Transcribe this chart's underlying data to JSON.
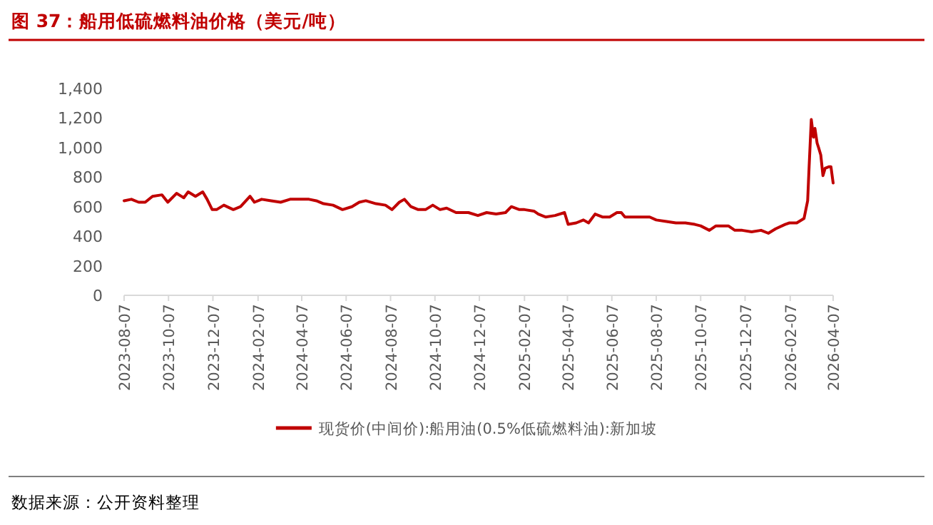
{
  "chart_data": {
    "type": "line",
    "title": "图 37：船用低硫燃料油价格（美元/吨）",
    "annotations": [
      "数据来源：公开资料整理"
    ],
    "x": [
      "2023-08-07",
      "2023-08-17",
      "2023-08-27",
      "2023-09-05",
      "2023-09-15",
      "2023-09-28",
      "2023-10-06",
      "2023-10-18",
      "2023-10-28",
      "2023-11-03",
      "2023-11-13",
      "2023-11-23",
      "2023-11-29",
      "2023-12-06",
      "2023-12-12",
      "2023-12-22",
      "2024-01-04",
      "2024-01-14",
      "2024-01-27",
      "2024-02-02",
      "2024-02-12",
      "2024-02-25",
      "2024-03-09",
      "2024-03-22",
      "2024-04-04",
      "2024-04-17",
      "2024-04-27",
      "2024-05-07",
      "2024-05-20",
      "2024-06-02",
      "2024-06-15",
      "2024-06-25",
      "2024-07-04",
      "2024-07-18",
      "2024-07-31",
      "2024-08-09",
      "2024-08-19",
      "2024-08-26",
      "2024-09-04",
      "2024-09-14",
      "2024-09-24",
      "2024-10-04",
      "2024-10-14",
      "2024-10-23",
      "2024-11-05",
      "2024-11-22",
      "2024-12-05",
      "2024-12-17",
      "2024-12-30",
      "2025-01-12",
      "2025-01-20",
      "2025-01-31",
      "2025-02-07",
      "2025-02-20",
      "2025-02-26",
      "2025-03-08",
      "2025-03-21",
      "2025-04-03",
      "2025-04-08",
      "2025-04-19",
      "2025-04-29",
      "2025-05-06",
      "2025-05-15",
      "2025-05-25",
      "2025-06-04",
      "2025-06-14",
      "2025-06-20",
      "2025-06-25",
      "2025-07-13",
      "2025-07-29",
      "2025-08-07",
      "2025-08-21",
      "2025-09-03",
      "2025-09-16",
      "2025-09-29",
      "2025-10-07",
      "2025-10-19",
      "2025-10-28",
      "2025-11-14",
      "2025-11-23",
      "2025-12-03",
      "2025-12-16",
      "2025-12-29",
      "2026-01-08",
      "2026-01-18",
      "2026-01-31",
      "2026-02-06",
      "2026-02-16",
      "2026-02-26",
      "2026-03-03",
      "2026-03-05",
      "2026-03-08",
      "2026-03-11",
      "2026-03-13",
      "2026-03-16",
      "2026-03-18",
      "2026-03-21",
      "2026-03-24",
      "2026-03-27",
      "2026-04-01",
      "2026-04-04",
      "2026-04-07"
    ],
    "series": [
      {
        "name": "现货价(中间价):船用油(0.5%低硫燃料油):新加坡",
        "color": "#c00000",
        "values": [
          640,
          650,
          630,
          630,
          670,
          680,
          630,
          690,
          660,
          700,
          670,
          700,
          650,
          580,
          580,
          610,
          580,
          600,
          670,
          630,
          650,
          640,
          630,
          650,
          650,
          650,
          640,
          620,
          610,
          580,
          600,
          630,
          640,
          620,
          610,
          580,
          630,
          650,
          600,
          580,
          580,
          610,
          580,
          590,
          560,
          560,
          540,
          560,
          550,
          560,
          600,
          580,
          580,
          570,
          550,
          530,
          540,
          560,
          480,
          490,
          510,
          490,
          550,
          530,
          530,
          560,
          560,
          530,
          530,
          530,
          510,
          500,
          490,
          490,
          480,
          470,
          440,
          470,
          470,
          440,
          440,
          430,
          440,
          420,
          450,
          480,
          490,
          490,
          520,
          640,
          870,
          1190,
          1070,
          1130,
          1030,
          1000,
          950,
          810,
          860,
          870,
          870,
          760
        ]
      }
    ],
    "xlim": [
      "2023-08-07",
      "2026-04-07"
    ],
    "xticks": [
      "2023-08-07",
      "2023-10-07",
      "2023-12-07",
      "2024-02-07",
      "2024-04-07",
      "2024-06-07",
      "2024-08-07",
      "2024-10-07",
      "2024-12-07",
      "2025-02-07",
      "2025-04-07",
      "2025-06-07",
      "2025-08-07",
      "2025-10-07",
      "2025-12-07",
      "2026-02-07",
      "2026-04-07"
    ],
    "ylim": [
      0,
      1400
    ],
    "yticks": [
      0,
      200,
      400,
      600,
      {
        "value": 800,
        "label": "800"
      },
      {
        "value": 1000,
        "label": "1,000"
      },
      {
        "value": 1200,
        "label": "1,200"
      },
      {
        "value": 1400,
        "label": "1,400"
      }
    ],
    "grid": false,
    "legend": "bottom",
    "marker": "none",
    "line_style": "solid"
  }
}
